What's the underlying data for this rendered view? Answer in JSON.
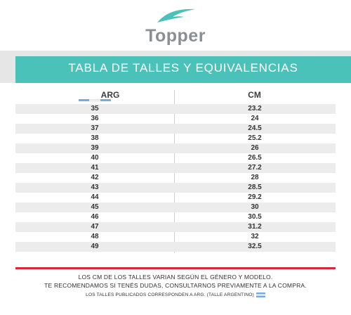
{
  "brand": {
    "name": "Topper",
    "accent": "#4bc2b9",
    "logo_text_color": "#8a8f94"
  },
  "banner": {
    "title": "TABLA DE TALLES Y EQUIVALENCIAS",
    "color": "#4bc2b9"
  },
  "table": {
    "headers": {
      "arg": "ARG",
      "cm": "CM"
    },
    "rows": [
      {
        "arg": "35",
        "cm": "23.2"
      },
      {
        "arg": "36",
        "cm": "24"
      },
      {
        "arg": "37",
        "cm": "24.5"
      },
      {
        "arg": "38",
        "cm": "25.2"
      },
      {
        "arg": "39",
        "cm": "26"
      },
      {
        "arg": "40",
        "cm": "26.5"
      },
      {
        "arg": "41",
        "cm": "27.2"
      },
      {
        "arg": "42",
        "cm": "28"
      },
      {
        "arg": "43",
        "cm": "28.5"
      },
      {
        "arg": "44",
        "cm": "29.2"
      },
      {
        "arg": "45",
        "cm": "30"
      },
      {
        "arg": "46",
        "cm": "30.5"
      },
      {
        "arg": "47",
        "cm": "31.2"
      },
      {
        "arg": "48",
        "cm": "32"
      },
      {
        "arg": "49",
        "cm": "32.5"
      }
    ]
  },
  "footer": {
    "line1": "LOS CM DE LOS TALLES VARIAN SEGÚN EL GÉNERO Y MODELO.",
    "line2": "TE RECOMENDAMOS SI TENÉS DUDAS, CONSULTARNOS PREVIAMENTE A LA COMPRA.",
    "line3": "LOS TALLES PUBLICADOS CORRESPONDEN A ARG. (TALLE ARGENTINO)",
    "rule_color": "#d6283a"
  }
}
